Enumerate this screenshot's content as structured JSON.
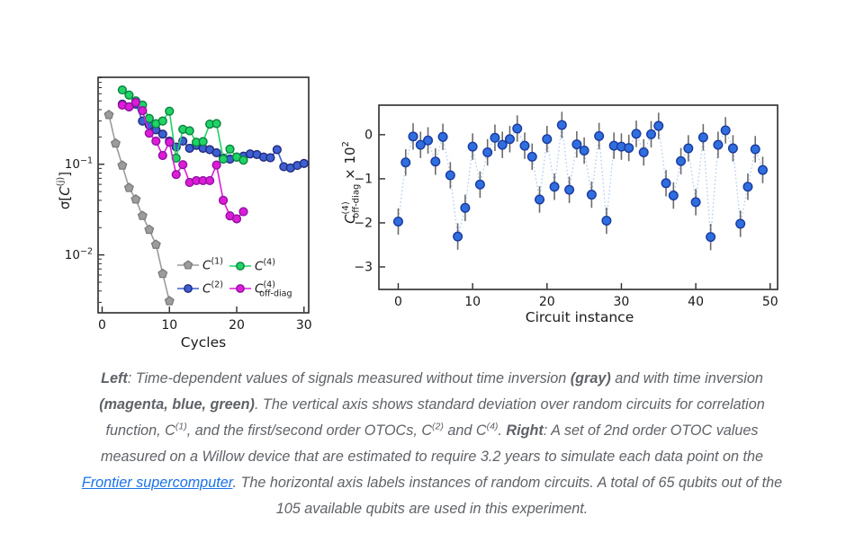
{
  "figure": {
    "background": "#ffffff",
    "frame_color": "#2b2b2b",
    "caption_color": "#5f6368",
    "link_color": "#1a73e8"
  },
  "caption": {
    "lines": [
      [
        {
          "t": "Left",
          "b": true
        },
        {
          "t": ": Time-dependent values of signals measured without time inversion "
        },
        {
          "t": "(gray)",
          "b": true
        },
        {
          "t": " and with time inversion"
        }
      ],
      [
        {
          "t": "(magenta, blue, green)",
          "b": true
        },
        {
          "t": ". The vertical axis shows standard deviation over random circuits for correlation"
        }
      ],
      [
        {
          "t": "function, C"
        },
        {
          "t": "(1)",
          "sup": true
        },
        {
          "t": ", and the first/second order OTOCs, C"
        },
        {
          "t": "(2)",
          "sup": true
        },
        {
          "t": " and C"
        },
        {
          "t": "(4)",
          "sup": true
        },
        {
          "t": ". "
        },
        {
          "t": "Right",
          "b": true
        },
        {
          "t": ": A set of 2nd order OTOC values"
        }
      ],
      [
        {
          "t": "measured on a Willow device that are estimated to require 3.2 years to simulate each data point on the"
        }
      ],
      [
        {
          "t": "Frontier supercomputer",
          "link": true
        },
        {
          "t": ". The horizontal axis labels instances of random circuits. A total of 65 qubits out of the"
        }
      ],
      [
        {
          "t": "105 available qubits are used in this experiment."
        }
      ]
    ]
  },
  "chart_data": [
    {
      "id": "left",
      "type": "line",
      "title": "",
      "xlabel": "Cycles",
      "ylabel": "σ[C^(j)]",
      "ylabel_parts": [
        {
          "t": "σ["
        },
        {
          "t": "C",
          "i": true
        },
        {
          "t": "(j)",
          "sup": true
        },
        {
          "t": "]"
        }
      ],
      "xlim": [
        -0.6,
        30.7
      ],
      "yscale": "log",
      "ylim": [
        0.0023,
        0.91
      ],
      "xticks": [
        0,
        10,
        20,
        30
      ],
      "yticks": [
        {
          "v": 0.1,
          "base": "10",
          "exp": "−1"
        },
        {
          "v": 0.01,
          "base": "10",
          "exp": "−2"
        }
      ],
      "grid": false,
      "legend_position": "lower-right-inside",
      "series": [
        {
          "key": "C1",
          "label": "C^(1)",
          "label_parts": [
            {
              "t": "C",
              "i": true
            },
            {
              "t": "(1)",
              "sup": true
            }
          ],
          "marker": "pentagon",
          "color": "#9c9c9c",
          "edge_color": "#7b7b7b",
          "x": [
            1,
            2,
            3,
            4,
            5,
            6,
            7,
            8,
            9,
            10
          ],
          "y": [
            0.35,
            0.17,
            0.097,
            0.055,
            0.041,
            0.027,
            0.019,
            0.013,
            0.0062,
            0.0031
          ]
        },
        {
          "key": "C2",
          "label": "C^(2)",
          "label_parts": [
            {
              "t": "C",
              "i": true
            },
            {
              "t": "(2)",
              "sup": true
            }
          ],
          "marker": "circle",
          "color": "#3c5fd2",
          "edge_color": "#222a7a",
          "x": [
            3,
            4,
            5,
            6,
            7,
            8,
            9,
            10,
            11,
            12,
            13,
            14,
            15,
            16,
            17,
            18,
            19,
            20,
            21,
            22,
            23,
            24,
            25,
            26,
            27,
            28,
            29,
            30
          ],
          "y": [
            0.46,
            0.43,
            0.46,
            0.3,
            0.27,
            0.24,
            0.215,
            0.18,
            0.155,
            0.18,
            0.15,
            0.162,
            0.15,
            0.145,
            0.134,
            0.117,
            0.114,
            0.12,
            0.123,
            0.13,
            0.128,
            0.12,
            0.118,
            0.145,
            0.094,
            0.091,
            0.097,
            0.102
          ]
        },
        {
          "key": "C4",
          "label": "C^(4)",
          "label_parts": [
            {
              "t": "C",
              "i": true
            },
            {
              "t": "(4)",
              "sup": true
            }
          ],
          "marker": "circle",
          "color": "#1fd465",
          "edge_color": "#0b8040",
          "x": [
            3,
            4,
            5,
            6,
            7,
            8,
            9,
            10,
            11,
            12,
            13,
            14,
            15,
            16,
            17,
            18,
            19,
            20,
            21
          ],
          "y": [
            0.66,
            0.58,
            0.5,
            0.45,
            0.32,
            0.28,
            0.3,
            0.385,
            0.117,
            0.243,
            0.234,
            0.175,
            0.178,
            0.277,
            0.281,
            0.114,
            0.147,
            0.12,
            0.111
          ]
        },
        {
          "key": "C4offdiag",
          "label": "C^(4)_off-diag",
          "label_parts": [
            {
              "t": "C",
              "i": true
            },
            {
              "t": "(4)",
              "sup": true
            },
            {
              "t": "off-diag",
              "sub": true
            }
          ],
          "marker": "circle",
          "color": "#de1cd6",
          "edge_color": "#8e12a4",
          "x": [
            3,
            4,
            5,
            6,
            7,
            8,
            9,
            10,
            11,
            12,
            13,
            14,
            15,
            16,
            17,
            18,
            19,
            20,
            21
          ],
          "y": [
            0.45,
            0.43,
            0.48,
            0.39,
            0.22,
            0.18,
            0.125,
            0.175,
            0.077,
            0.099,
            0.063,
            0.066,
            0.066,
            0.066,
            0.098,
            0.04,
            0.027,
            0.025,
            0.03
          ]
        }
      ]
    },
    {
      "id": "right",
      "type": "scatter",
      "title": "",
      "xlabel": "Circuit instance",
      "ylabel": "C^(4)_off-diag × 10^2",
      "ylabel_parts": [
        {
          "t": "C",
          "i": true
        },
        {
          "t": "(4)",
          "sup": true
        },
        {
          "t": "off-diag",
          "sub": true
        },
        {
          "t": " × 10"
        },
        {
          "t": "2",
          "sup": true
        }
      ],
      "xlim": [
        -2.6,
        51.0
      ],
      "ylim": [
        -3.51,
        0.67
      ],
      "xticks": [
        0,
        10,
        20,
        30,
        40,
        50
      ],
      "yticks": [
        {
          "v": 0,
          "label": "0"
        },
        {
          "v": -1,
          "label": "−1"
        },
        {
          "v": -2,
          "label": "−2"
        },
        {
          "v": -3,
          "label": "−3"
        }
      ],
      "grid": false,
      "yerr": 0.3,
      "marker_color": "#2e6edf",
      "marker_edge_color": "#1b3a9e",
      "errorbar_color": "#6b6b6b",
      "connector_color": "#abc8f4",
      "connector_style": "dotted",
      "x": [
        0,
        1,
        2,
        3,
        4,
        5,
        6,
        7,
        8,
        9,
        10,
        11,
        12,
        13,
        14,
        15,
        16,
        17,
        18,
        19,
        20,
        21,
        22,
        23,
        24,
        25,
        26,
        27,
        28,
        29,
        30,
        31,
        32,
        33,
        34,
        35,
        36,
        37,
        38,
        39,
        40,
        41,
        42,
        43,
        44,
        45,
        46,
        47,
        48,
        49
      ],
      "y": [
        -1.97,
        -0.63,
        -0.04,
        -0.23,
        -0.13,
        -0.61,
        -0.05,
        -0.92,
        -2.31,
        -1.66,
        -0.27,
        -1.13,
        -0.4,
        -0.07,
        -0.23,
        -0.1,
        0.14,
        -0.25,
        -0.5,
        -1.47,
        -0.1,
        -1.18,
        0.22,
        -1.25,
        -0.22,
        -0.36,
        -1.36,
        -0.03,
        -1.95,
        -0.25,
        -0.27,
        -0.3,
        0.02,
        -0.4,
        0.01,
        0.2,
        -1.1,
        -1.38,
        -0.6,
        -0.31,
        -1.53,
        -0.06,
        -2.32,
        -0.23,
        0.1,
        -0.31,
        -2.02,
        -1.18,
        -0.33,
        -0.8
      ]
    }
  ]
}
